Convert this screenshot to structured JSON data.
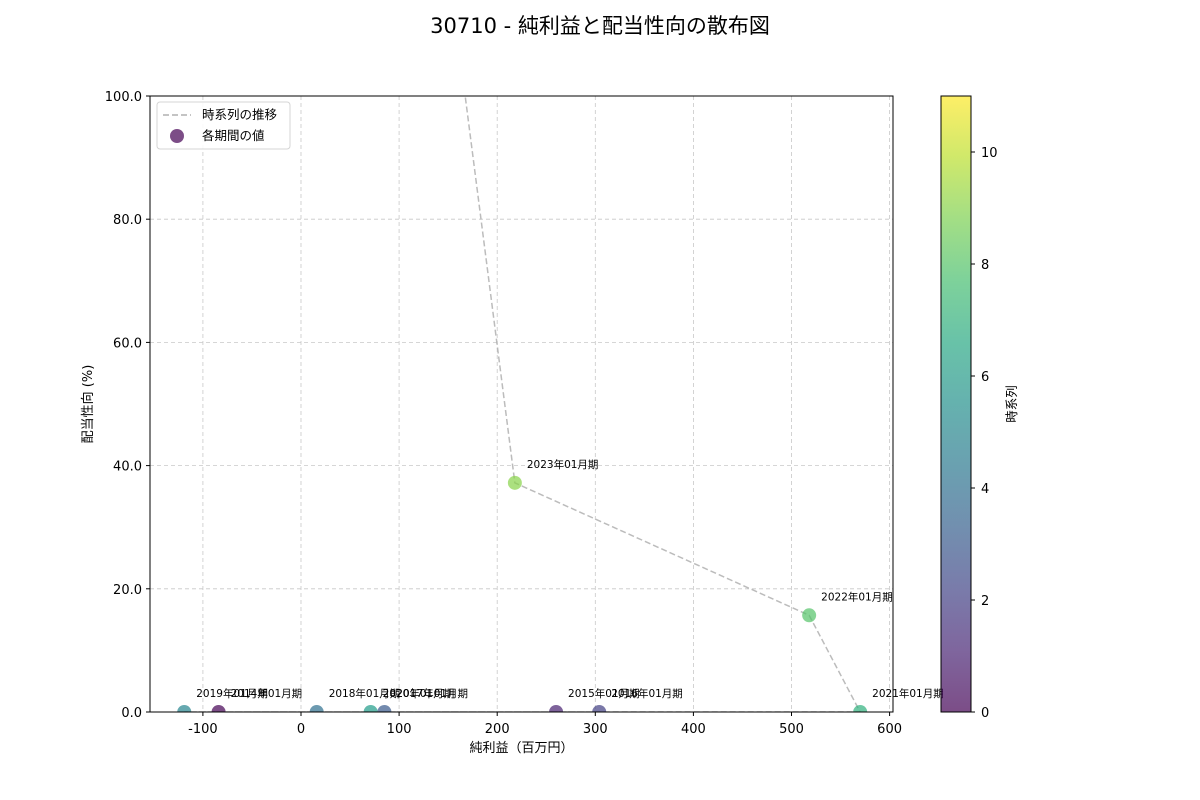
{
  "chart_data": {
    "type": "scatter",
    "title": "30710 - 純利益と配当性向の散布図",
    "xlabel": "純利益（百万円）",
    "ylabel": "配当性向 (%)",
    "xlim": [
      -152,
      605
    ],
    "ylim": [
      0,
      100
    ],
    "xticks": [
      -100,
      0,
      100,
      200,
      300,
      400,
      500,
      600
    ],
    "yticks": [
      "0.0",
      "20.0",
      "40.0",
      "60.0",
      "80.0",
      "100.0"
    ],
    "grid": true,
    "legend": {
      "position": "upper left",
      "entries": [
        "時系列の推移",
        "各期間の値"
      ]
    },
    "colorbar": {
      "label": "時系列",
      "range": [
        0,
        11
      ],
      "ticks": [
        0,
        2,
        4,
        6,
        8,
        10
      ],
      "colormap": "viridis"
    },
    "points": [
      {
        "label": "2014年01月期",
        "x": -84,
        "y": 0,
        "t": 0
      },
      {
        "label": "2015年01月期",
        "x": 260,
        "y": 0,
        "t": 1
      },
      {
        "label": "2016年01月期",
        "x": 304,
        "y": 0,
        "t": 2
      },
      {
        "label": "2017年01月期",
        "x": 85,
        "y": 0,
        "t": 3
      },
      {
        "label": "2018年01月期",
        "x": 16,
        "y": 0,
        "t": 4
      },
      {
        "label": "2019年01月期",
        "x": -119,
        "y": 0,
        "t": 5
      },
      {
        "label": "2020年01月期",
        "x": 71,
        "y": 0,
        "t": 6
      },
      {
        "label": "2021年01月期",
        "x": 570,
        "y": 0,
        "t": 7
      },
      {
        "label": "2022年01月期",
        "x": 518,
        "y": 15.7,
        "t": 8
      },
      {
        "label": "2023年01月期",
        "x": 218,
        "y": 37.2,
        "t": 9
      }
    ]
  }
}
